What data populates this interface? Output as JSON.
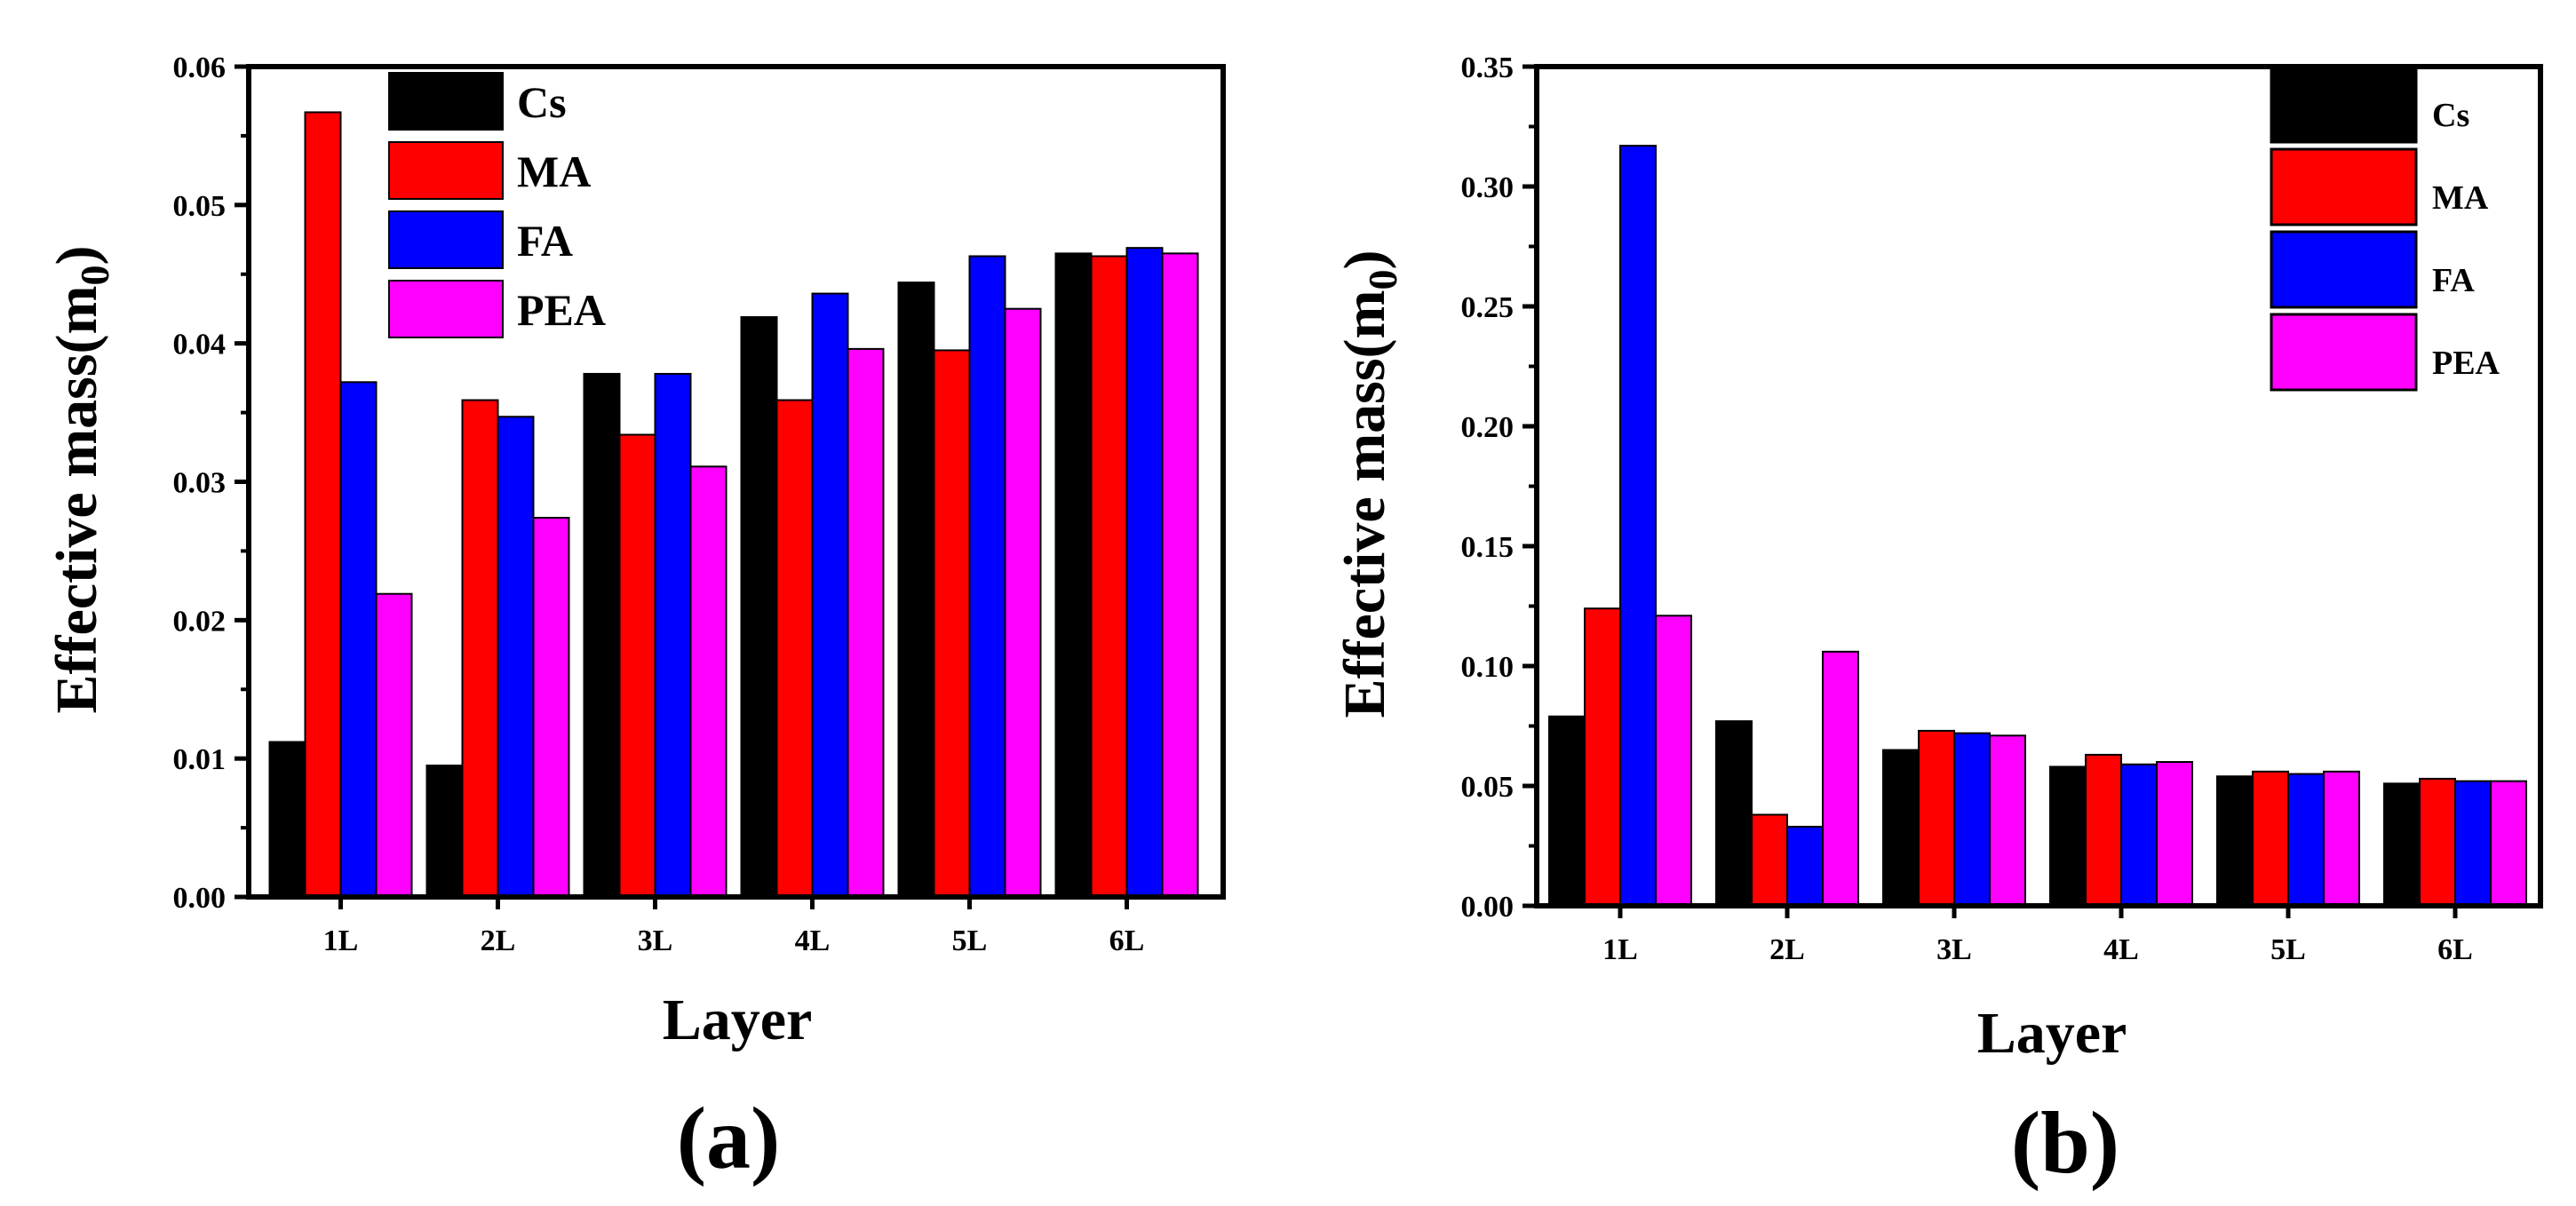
{
  "chart_data": [
    {
      "type": "bar",
      "panel_label": "(a)",
      "categories": [
        "1L",
        "2L",
        "3L",
        "4L",
        "5L",
        "6L"
      ],
      "series": [
        {
          "name": "Cs",
          "color": "#000000",
          "values": [
            0.0112,
            0.0095,
            0.0378,
            0.0419,
            0.0444,
            0.0465
          ]
        },
        {
          "name": "MA",
          "color": "#ff0000",
          "values": [
            0.0567,
            0.0359,
            0.0334,
            0.0359,
            0.0395,
            0.0463
          ]
        },
        {
          "name": "FA",
          "color": "#0000ff",
          "values": [
            0.0372,
            0.0347,
            0.0378,
            0.0436,
            0.0463,
            0.0469
          ]
        },
        {
          "name": "PEA",
          "color": "#ff00ff",
          "values": [
            0.0219,
            0.0274,
            0.0311,
            0.0396,
            0.0425,
            0.0465
          ]
        }
      ],
      "xlabel": "Layer",
      "ylabel": "Effective mass(m",
      "ylabel_sub": "0",
      "ylabel_close": ")",
      "ylim": [
        0,
        0.06
      ],
      "yticks": [
        "0.00",
        "0.01",
        "0.02",
        "0.03",
        "0.04",
        "0.05",
        "0.06"
      ],
      "legend_position": "top-left"
    },
    {
      "type": "bar",
      "panel_label": "(b)",
      "categories": [
        "1L",
        "2L",
        "3L",
        "4L",
        "5L",
        "6L"
      ],
      "series": [
        {
          "name": "Cs",
          "color": "#000000",
          "values": [
            0.079,
            0.077,
            0.065,
            0.058,
            0.054,
            0.051
          ]
        },
        {
          "name": "MA",
          "color": "#ff0000",
          "values": [
            0.124,
            0.038,
            0.073,
            0.063,
            0.056,
            0.053
          ]
        },
        {
          "name": "FA",
          "color": "#0000ff",
          "values": [
            0.317,
            0.033,
            0.072,
            0.059,
            0.055,
            0.052
          ]
        },
        {
          "name": "PEA",
          "color": "#ff00ff",
          "values": [
            0.121,
            0.106,
            0.071,
            0.06,
            0.056,
            0.052
          ]
        }
      ],
      "xlabel": "Layer",
      "ylabel": "Effective mass(m",
      "ylabel_sub": "0",
      "ylabel_close": ")",
      "ylim": [
        0,
        0.35
      ],
      "yticks": [
        "0.00",
        "0.05",
        "0.10",
        "0.15",
        "0.20",
        "0.25",
        "0.30",
        "0.35"
      ],
      "legend_position": "top-right"
    }
  ]
}
